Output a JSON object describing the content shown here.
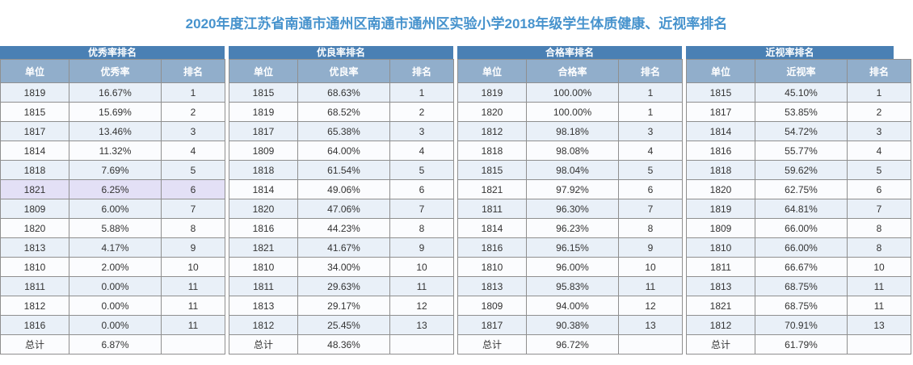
{
  "page_title": "2020年度江苏省南通市通州区南通市通州区实验小学2018年级学生体质健康、近视率排名",
  "colors": {
    "title_text": "#4793cd",
    "table_title_bg": "#4a80b4",
    "column_header_bg": "#91aecb",
    "row_odd_bg": "#e9f0f8",
    "row_even_bg": "#fbfcfe",
    "highlight_row_bg": "#e3e0f6",
    "border": "#8f8f8f",
    "cell_text": "#333333"
  },
  "tables": [
    {
      "title": "优秀率排名",
      "columns": [
        "单位",
        "优秀率",
        "排名"
      ],
      "highlight_row_index": 5,
      "rows": [
        [
          "1819",
          "16.67%",
          "1"
        ],
        [
          "1815",
          "15.69%",
          "2"
        ],
        [
          "1817",
          "13.46%",
          "3"
        ],
        [
          "1814",
          "11.32%",
          "4"
        ],
        [
          "1818",
          "7.69%",
          "5"
        ],
        [
          "1821",
          "6.25%",
          "6"
        ],
        [
          "1809",
          "6.00%",
          "7"
        ],
        [
          "1820",
          "5.88%",
          "8"
        ],
        [
          "1813",
          "4.17%",
          "9"
        ],
        [
          "1810",
          "2.00%",
          "10"
        ],
        [
          "1811",
          "0.00%",
          "11"
        ],
        [
          "1812",
          "0.00%",
          "11"
        ],
        [
          "1816",
          "0.00%",
          "11"
        ]
      ],
      "total_label": "总计",
      "total_value": "6.87%"
    },
    {
      "title": "优良率排名",
      "columns": [
        "单位",
        "优良率",
        "排名"
      ],
      "highlight_row_index": -1,
      "rows": [
        [
          "1815",
          "68.63%",
          "1"
        ],
        [
          "1819",
          "68.52%",
          "2"
        ],
        [
          "1817",
          "65.38%",
          "3"
        ],
        [
          "1809",
          "64.00%",
          "4"
        ],
        [
          "1818",
          "61.54%",
          "5"
        ],
        [
          "1814",
          "49.06%",
          "6"
        ],
        [
          "1820",
          "47.06%",
          "7"
        ],
        [
          "1816",
          "44.23%",
          "8"
        ],
        [
          "1821",
          "41.67%",
          "9"
        ],
        [
          "1810",
          "34.00%",
          "10"
        ],
        [
          "1811",
          "29.63%",
          "11"
        ],
        [
          "1813",
          "29.17%",
          "12"
        ],
        [
          "1812",
          "25.45%",
          "13"
        ]
      ],
      "total_label": "总计",
      "total_value": "48.36%"
    },
    {
      "title": "合格率排名",
      "columns": [
        "单位",
        "合格率",
        "排名"
      ],
      "highlight_row_index": -1,
      "rows": [
        [
          "1819",
          "100.00%",
          "1"
        ],
        [
          "1820",
          "100.00%",
          "1"
        ],
        [
          "1812",
          "98.18%",
          "3"
        ],
        [
          "1818",
          "98.08%",
          "4"
        ],
        [
          "1815",
          "98.04%",
          "5"
        ],
        [
          "1821",
          "97.92%",
          "6"
        ],
        [
          "1811",
          "96.30%",
          "7"
        ],
        [
          "1814",
          "96.23%",
          "8"
        ],
        [
          "1816",
          "96.15%",
          "9"
        ],
        [
          "1810",
          "96.00%",
          "10"
        ],
        [
          "1813",
          "95.83%",
          "11"
        ],
        [
          "1809",
          "94.00%",
          "12"
        ],
        [
          "1817",
          "90.38%",
          "13"
        ]
      ],
      "total_label": "总计",
      "total_value": "96.72%"
    },
    {
      "title": "近视率排名",
      "columns": [
        "单位",
        "近视率",
        "排名"
      ],
      "highlight_row_index": -1,
      "rows": [
        [
          "1815",
          "45.10%",
          "1"
        ],
        [
          "1817",
          "53.85%",
          "2"
        ],
        [
          "1814",
          "54.72%",
          "3"
        ],
        [
          "1816",
          "55.77%",
          "4"
        ],
        [
          "1818",
          "59.62%",
          "5"
        ],
        [
          "1820",
          "62.75%",
          "6"
        ],
        [
          "1819",
          "64.81%",
          "7"
        ],
        [
          "1809",
          "66.00%",
          "8"
        ],
        [
          "1810",
          "66.00%",
          "8"
        ],
        [
          "1811",
          "66.67%",
          "10"
        ],
        [
          "1813",
          "68.75%",
          "11"
        ],
        [
          "1821",
          "68.75%",
          "11"
        ],
        [
          "1812",
          "70.91%",
          "13"
        ]
      ],
      "total_label": "总计",
      "total_value": "61.79%"
    }
  ]
}
